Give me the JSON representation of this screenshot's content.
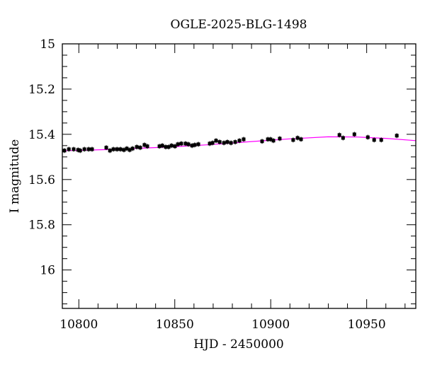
{
  "chart_data": {
    "type": "scatter",
    "title": "OGLE-2025-BLG-1498",
    "xlabel": "HJD - 2450000",
    "ylabel": "I magnitude",
    "xlim": [
      10791.4,
      10975.6
    ],
    "ylim": [
      16.17,
      15.0
    ],
    "y_inverted": true,
    "x_ticks": [
      10800,
      10850,
      10900,
      10950
    ],
    "x_tick_labels": [
      "10800",
      "10850",
      "10900",
      "10950"
    ],
    "y_ticks": [
      15,
      15.2,
      15.4,
      15.6,
      15.8,
      16
    ],
    "y_tick_labels": [
      "15",
      "15.2",
      "15.4",
      "15.6",
      "15.8",
      "16"
    ],
    "grid": false,
    "colors": {
      "points": "#000000",
      "model": "#ff00ff"
    },
    "series": [
      {
        "kind": "points",
        "x": [
          10792.5,
          10794.8,
          10797.3,
          10799.6,
          10800.7,
          10802.9,
          10805.1,
          10806.9,
          10814.3,
          10816.2,
          10818.0,
          10819.9,
          10821.7,
          10823.5,
          10825.0,
          10826.5,
          10828.0,
          10830.2,
          10832.0,
          10834.2,
          10835.7,
          10842.0,
          10843.5,
          10845.3,
          10846.8,
          10848.3,
          10850.1,
          10851.6,
          10853.4,
          10855.6,
          10857.1,
          10859.0,
          10860.4,
          10862.3,
          10868.2,
          10869.7,
          10871.5,
          10873.4,
          10875.6,
          10877.4,
          10879.3,
          10881.5,
          10883.7,
          10885.9,
          10895.5,
          10898.5,
          10899.9,
          10901.4,
          10904.7,
          10911.7,
          10914.0,
          10915.8,
          10935.8,
          10937.7,
          10943.6,
          10950.6,
          10953.9,
          10957.6,
          10965.7
        ],
        "y": [
          15.472,
          15.466,
          15.466,
          15.469,
          15.472,
          15.466,
          15.466,
          15.466,
          15.459,
          15.472,
          15.466,
          15.466,
          15.466,
          15.469,
          15.463,
          15.469,
          15.463,
          15.456,
          15.459,
          15.447,
          15.453,
          15.453,
          15.45,
          15.456,
          15.456,
          15.45,
          15.453,
          15.444,
          15.441,
          15.441,
          15.444,
          15.45,
          15.447,
          15.444,
          15.441,
          15.438,
          15.428,
          15.434,
          15.438,
          15.434,
          15.438,
          15.434,
          15.428,
          15.422,
          15.431,
          15.422,
          15.422,
          15.428,
          15.419,
          15.425,
          15.416,
          15.422,
          15.403,
          15.416,
          15.4,
          15.413,
          15.425,
          15.425,
          15.406
        ]
      },
      {
        "kind": "model",
        "x": [
          10791.4,
          10820,
          10850,
          10870,
          10890,
          10910,
          10930,
          10945,
          10960,
          10975.6
        ],
        "y": [
          15.473,
          15.466,
          15.455,
          15.445,
          15.432,
          15.42,
          15.411,
          15.412,
          15.418,
          15.428
        ]
      }
    ]
  }
}
